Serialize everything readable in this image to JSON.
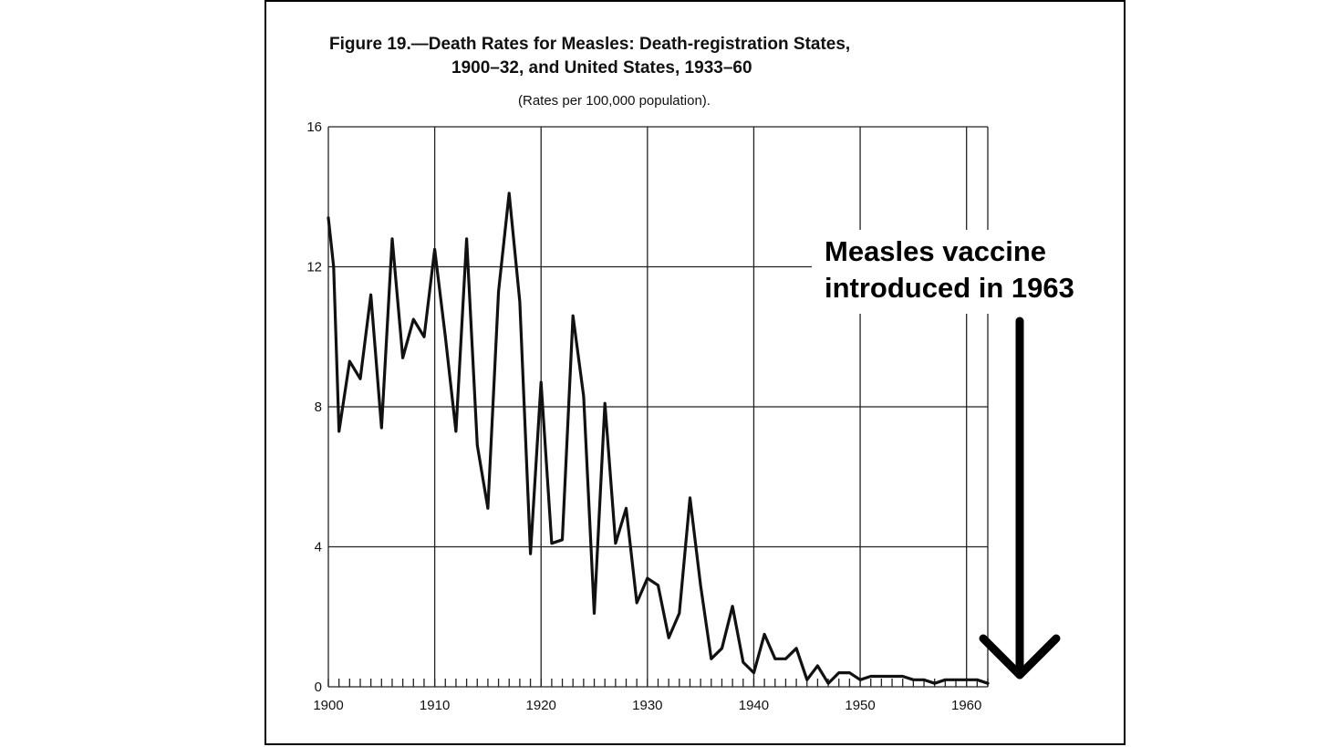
{
  "chart_data": {
    "type": "line",
    "title_line1": "Figure 19.—Death Rates for Measles:  Death-registration States,",
    "title_line2": "1900–32, and United States, 1933–60",
    "subtitle": "(Rates per 100,000 population).",
    "xlabel": "",
    "ylabel": "",
    "xlim": [
      1900,
      1962
    ],
    "ylim": [
      0,
      16
    ],
    "x_ticks": [
      1900,
      1910,
      1920,
      1930,
      1940,
      1950,
      1960
    ],
    "x_tick_labels": [
      "1900",
      "1910",
      "1920",
      "1930",
      "1940",
      "1950",
      "1960"
    ],
    "y_ticks": [
      0,
      4,
      8,
      12,
      16
    ],
    "y_tick_labels": [
      "0",
      "4",
      "8",
      "12",
      "16"
    ],
    "grid": true,
    "series": [
      {
        "x": [
          1900,
          1900.5,
          1901,
          1902,
          1903,
          1904,
          1905,
          1906,
          1907,
          1908,
          1909,
          1910,
          1911,
          1912,
          1913,
          1914,
          1915,
          1916,
          1917,
          1918,
          1919,
          1920,
          1921,
          1922,
          1923,
          1924,
          1925,
          1926,
          1927,
          1928,
          1929,
          1930,
          1931,
          1932,
          1933,
          1934,
          1935,
          1936,
          1937,
          1938,
          1939,
          1940,
          1941,
          1942,
          1943,
          1944,
          1945,
          1946,
          1947,
          1948,
          1949,
          1950,
          1951,
          1952,
          1953,
          1954,
          1955,
          1956,
          1957,
          1958,
          1959,
          1960,
          1961,
          1962
        ],
        "values": [
          13.4,
          12.0,
          7.3,
          9.3,
          8.8,
          11.2,
          7.4,
          12.8,
          9.4,
          10.5,
          10.0,
          12.5,
          10.0,
          7.3,
          12.8,
          6.9,
          5.1,
          11.3,
          14.1,
          11.0,
          3.8,
          8.7,
          4.1,
          4.2,
          10.6,
          8.3,
          2.1,
          8.1,
          4.1,
          5.1,
          2.4,
          3.1,
          2.9,
          1.4,
          2.1,
          5.4,
          2.9,
          0.8,
          1.1,
          2.3,
          0.7,
          0.4,
          1.5,
          0.8,
          0.8,
          1.1,
          0.2,
          0.6,
          0.1,
          0.4,
          0.4,
          0.2,
          0.3,
          0.3,
          0.3,
          0.3,
          0.2,
          0.2,
          0.1,
          0.2,
          0.2,
          0.2,
          0.2,
          0.1
        ]
      }
    ],
    "annotation": {
      "line1": "Measles vaccine",
      "line2": "introduced in 1963",
      "arrow": "down"
    },
    "colors": {
      "line": "#111111",
      "grid": "#222222",
      "background": "#ffffff"
    }
  }
}
